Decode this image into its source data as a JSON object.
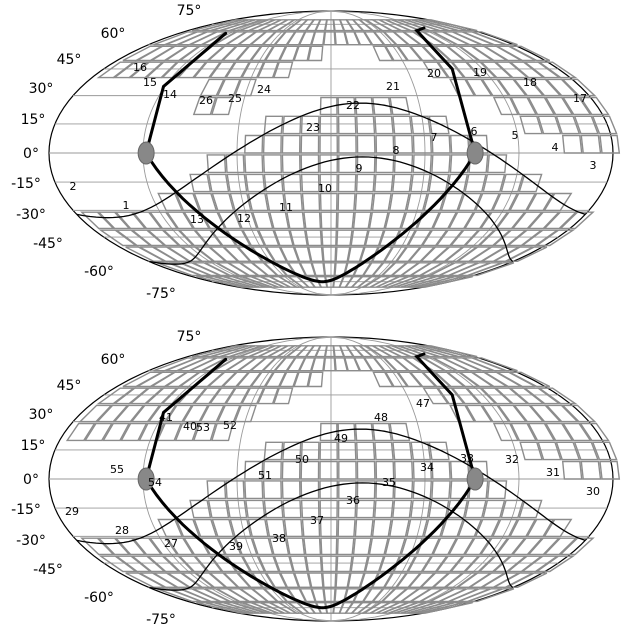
{
  "colors": {
    "tile_stroke": "#8c8c8c",
    "graticule": "#9a9a9a",
    "outline": "#000000",
    "track": "#000000",
    "pole_marker": "#888888"
  },
  "panels": [
    {
      "id": "top",
      "lat_labels": [
        "75°",
        "60°",
        "45°",
        "30°",
        "15°",
        "0°",
        "-15°",
        "-30°",
        "-45°",
        "-60°",
        "-75°"
      ],
      "field_labels": [
        "1",
        "2",
        "3",
        "4",
        "5",
        "6",
        "7",
        "8",
        "9",
        "10",
        "11",
        "12",
        "13",
        "14",
        "15",
        "16",
        "17",
        "18",
        "19",
        "20",
        "21",
        "22",
        "23",
        "24",
        "25",
        "26"
      ]
    },
    {
      "id": "bottom",
      "lat_labels": [
        "75°",
        "60°",
        "45°",
        "30°",
        "15°",
        "0°",
        "-15°",
        "-30°",
        "-45°",
        "-60°",
        "-75°"
      ],
      "field_labels": [
        "27",
        "28",
        "29",
        "30",
        "31",
        "32",
        "33",
        "34",
        "35",
        "36",
        "37",
        "38",
        "39",
        "40",
        "41",
        "47",
        "48",
        "49",
        "50",
        "51",
        "52",
        "53",
        "54",
        "55"
      ]
    }
  ]
}
